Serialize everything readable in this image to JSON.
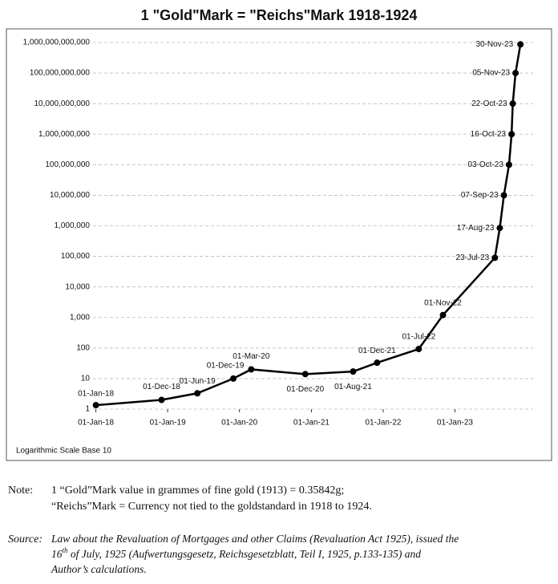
{
  "chart_data": {
    "type": "line",
    "title": "1 \"Gold\"Mark = \"Reichs\"Mark 1918-1924",
    "x": [
      "01-Jan-18",
      "01-Dec-18",
      "01-Jun-19",
      "01-Dec-19",
      "01-Mar-20",
      "01-Dec-20",
      "01-Aug-21",
      "01-Dec-21",
      "01-Jul-22",
      "01-Nov-22",
      "23-Jul-23",
      "17-Aug-23",
      "07-Sep-23",
      "03-Oct-23",
      "16-Oct-23",
      "22-Oct-23",
      "05-Nov-23",
      "30-Nov-23"
    ],
    "series": [
      {
        "color": "#000000",
        "values": [
          1.35,
          2,
          3.3,
          10,
          20,
          14,
          17,
          33,
          93,
          1200,
          90000,
          850000,
          10000000,
          100000000,
          1000000000,
          10000000000,
          100000000000,
          870000000000
        ]
      }
    ],
    "log_scale": true,
    "ylim": [
      1,
      1000000000000
    ],
    "yticks": [
      1,
      10,
      100,
      {
        "value": 1000,
        "label": "1,000"
      },
      {
        "value": 10000,
        "label": "10,000"
      },
      {
        "value": 100000,
        "label": "100,000"
      },
      {
        "value": 1000000,
        "label": "1,000,000"
      },
      {
        "value": 10000000,
        "label": "10,000,000"
      },
      {
        "value": 100000000,
        "label": "100,000,000"
      },
      {
        "value": 1000000000,
        "label": "1,000,000,000"
      },
      {
        "value": 10000000000,
        "label": "10,000,000,000"
      },
      {
        "value": 100000000000,
        "label": "100,000,000,000"
      },
      {
        "value": 1000000000000,
        "label": "1,000,000,000,000"
      }
    ],
    "xlim": [
      "01-Dec-17",
      "01-Jan-24"
    ],
    "xticks": [
      "01-Jan-18",
      "01-Jan-19",
      "01-Jan-20",
      "01-Jan-21",
      "01-Jan-22",
      "01-Jan-23"
    ],
    "grid": true,
    "scale_note": "Logarithmic Scale Base 10"
  },
  "notes": {
    "note_label": "Note:",
    "note_lines": [
      "1 “Gold”Mark value in grammes of fine gold (1913) = 0.35842g;",
      "“Reichs”Mark = Currency not tied to the goldstandard in 1918 to 1924."
    ],
    "source_label": "Source:",
    "source_line1": "Law about the Revaluation of Mortgages and other Claims (Revaluation Act 1925), issued the",
    "source_line2_start": "16",
    "source_line2_sup": "th",
    "source_line2_rest": " of July, 1925 (Aufwertungsgesetz, Reichsgesetzblatt, Teil I, 1925, p.133-135) and",
    "source_line3": "Author’s calculations."
  }
}
